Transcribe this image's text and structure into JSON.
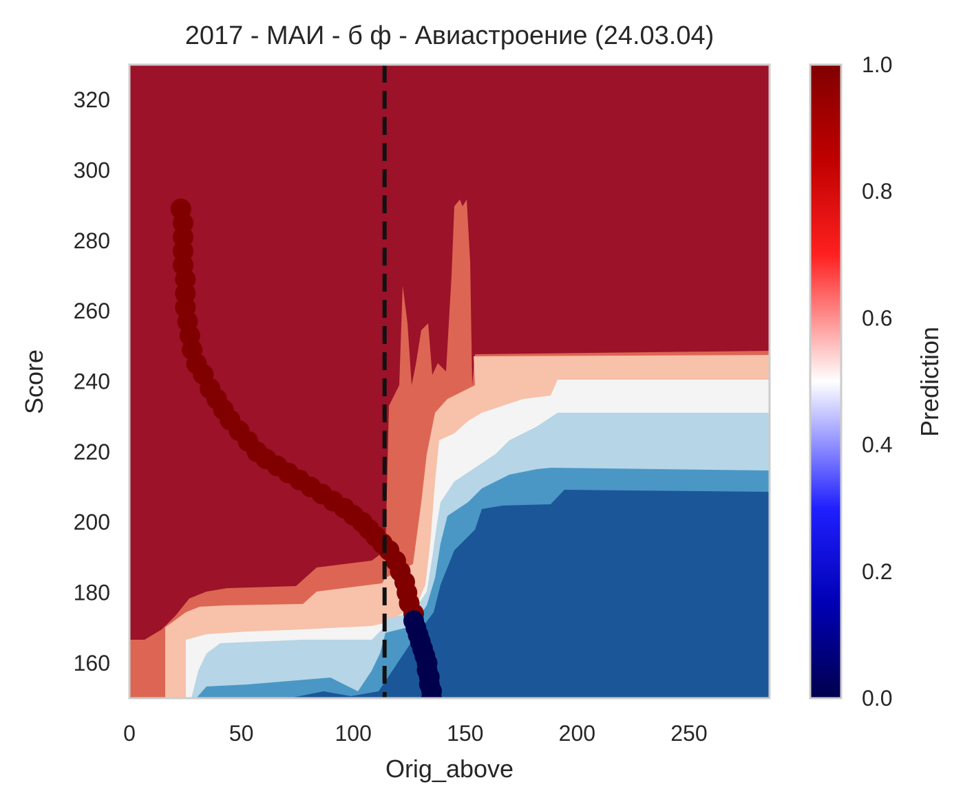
{
  "chart_data": {
    "type": "heatmap",
    "title": "2017 - МАИ - б ф - Авиастроение (24.03.04)",
    "xlabel": "Orig_above",
    "ylabel": "Score",
    "xlim": [
      0,
      286
    ],
    "ylim": [
      150,
      330
    ],
    "x_ticks": [
      0,
      50,
      100,
      150,
      200,
      250
    ],
    "y_ticks": [
      160,
      180,
      200,
      220,
      240,
      260,
      280,
      300,
      320
    ],
    "grid": false,
    "colorbar": {
      "label": "Prediction",
      "range": [
        0.0,
        1.0
      ],
      "ticks": [
        "0.0",
        "0.2",
        "0.4",
        "0.6",
        "0.8",
        "1.0"
      ],
      "colormap": "seismic",
      "colors": {
        "low": "#00004c",
        "mid": "#ffffff",
        "high": "#800000"
      }
    },
    "contour_levels": [
      {
        "level": "0.0-0.2",
        "color": "#1b5798"
      },
      {
        "level": "0.2-0.4",
        "color": "#4a97c5"
      },
      {
        "level": "0.4-0.5",
        "color": "#b6d5e7"
      },
      {
        "level": "0.5-0.6",
        "color": "#f4f4f4"
      },
      {
        "level": "0.6-0.7",
        "color": "#f7c1aa"
      },
      {
        "level": "0.7-0.8",
        "color": "#dc6653"
      },
      {
        "level": "0.8-1.0",
        "color": "#9b1229"
      }
    ],
    "threshold_line": {
      "x": 114,
      "style": "dashed",
      "color": "#111111"
    },
    "series": [
      {
        "type": "scatter",
        "points_positive": [
          [
            23,
            289
          ],
          [
            24,
            285
          ],
          [
            24,
            281
          ],
          [
            24,
            277
          ],
          [
            24,
            273
          ],
          [
            25,
            269
          ],
          [
            25,
            265
          ],
          [
            25,
            261
          ],
          [
            26,
            257
          ],
          [
            27,
            253
          ],
          [
            28,
            249
          ],
          [
            30,
            245
          ],
          [
            33,
            242
          ],
          [
            36,
            238
          ],
          [
            39,
            235
          ],
          [
            42,
            232
          ],
          [
            45,
            229
          ],
          [
            49,
            226
          ],
          [
            53,
            223
          ],
          [
            57,
            220
          ],
          [
            61,
            218
          ],
          [
            66,
            216
          ],
          [
            71,
            214
          ],
          [
            76,
            212
          ],
          [
            81,
            210
          ],
          [
            86,
            208
          ],
          [
            91,
            206
          ],
          [
            96,
            204
          ],
          [
            100,
            202
          ],
          [
            104,
            200
          ],
          [
            107,
            198
          ],
          [
            110,
            196
          ],
          [
            113,
            194
          ],
          [
            116,
            192
          ],
          [
            119,
            189
          ],
          [
            121,
            186
          ],
          [
            123,
            183
          ],
          [
            124,
            180
          ],
          [
            125,
            177
          ],
          [
            127,
            174
          ]
        ],
        "points_negative": [
          [
            127,
            172
          ],
          [
            128,
            170
          ],
          [
            129,
            168
          ],
          [
            130,
            166
          ],
          [
            131,
            164
          ],
          [
            132,
            162
          ],
          [
            133,
            160
          ],
          [
            133,
            158
          ],
          [
            134,
            156
          ],
          [
            134,
            154
          ],
          [
            135,
            152
          ],
          [
            135,
            150
          ]
        ],
        "color_positive": "#800000",
        "color_negative": "#00004c"
      }
    ]
  }
}
